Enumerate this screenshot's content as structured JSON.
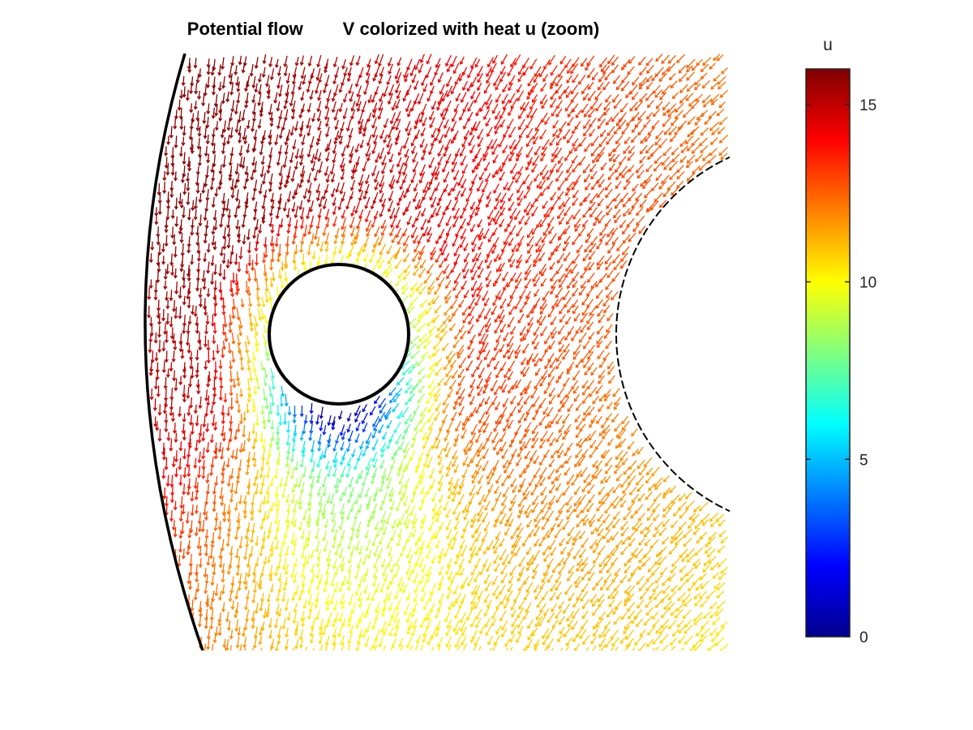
{
  "chart_data": {
    "type": "quiver",
    "title": "Potential flow        V colorized with heat u (zoom)",
    "colormap": "jet",
    "colorbar": {
      "label": "u",
      "ticks": [
        0,
        5,
        10,
        15
      ],
      "tick_labels": [
        "0",
        "5",
        "10",
        "15"
      ],
      "range": [
        0,
        16
      ],
      "placement": "right"
    },
    "field_description": "velocity arrows in an annular region between an outer arc boundary (left), a small inner circular obstacle, and a large circular boundary (right); heat u low (blue) near the inner obstacle and in its wake below, high (red) elsewhere",
    "boundaries": [
      "outer-arc",
      "inner-circle",
      "right-circle"
    ],
    "grid": false,
    "axes_visible": false
  }
}
